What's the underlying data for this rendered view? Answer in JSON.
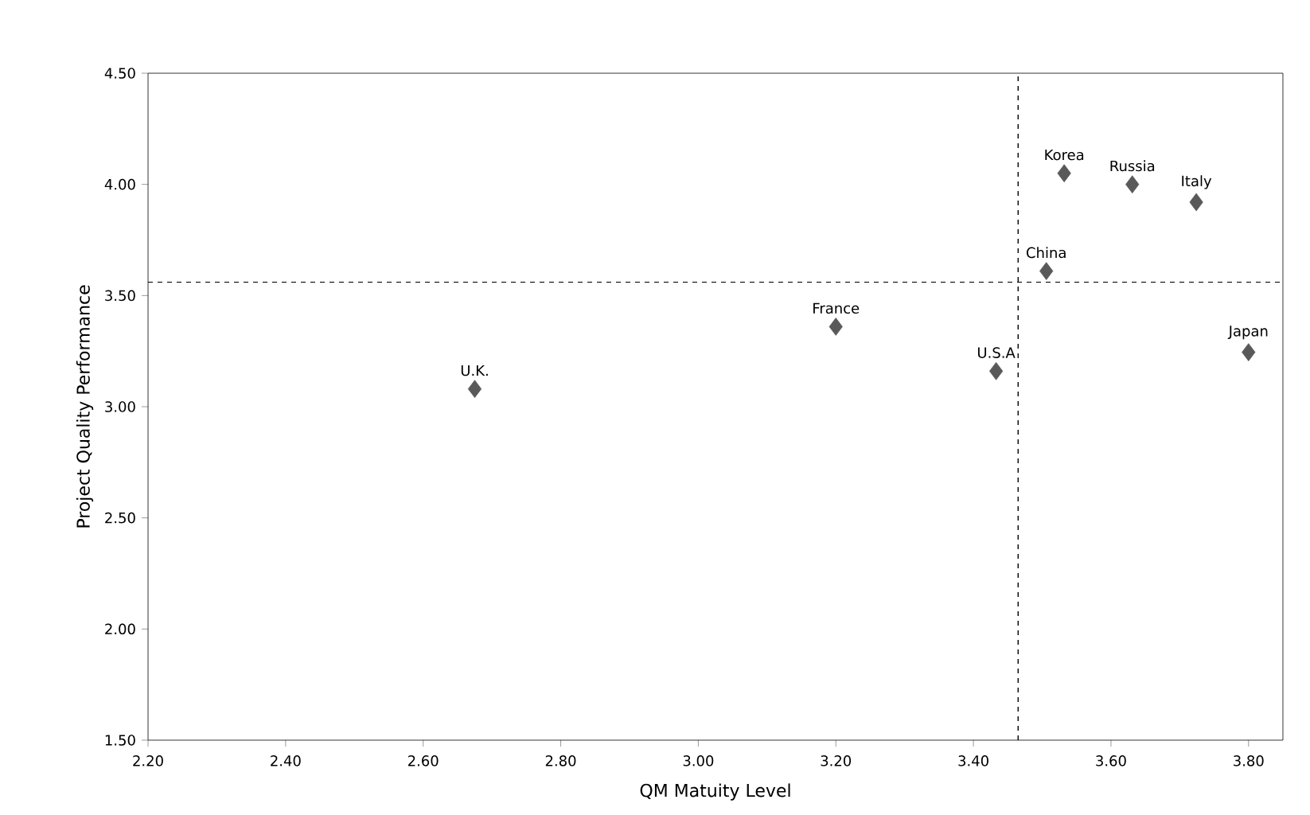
{
  "chart_data": {
    "type": "scatter",
    "xlabel": "QM Matuity Level",
    "ylabel": "Project Quality Performance",
    "x": [
      2.675,
      3.2,
      3.433,
      3.506,
      3.532,
      3.631,
      3.724,
      3.8
    ],
    "values": [
      3.08,
      3.36,
      3.16,
      3.61,
      4.05,
      4.0,
      3.92,
      3.245
    ],
    "color": "#595959",
    "marker": "diamond",
    "grid": false,
    "xlim": [
      2.2,
      3.85
    ],
    "xticks": [
      {
        "value": 2.2,
        "label": "2.20"
      },
      {
        "value": 2.4,
        "label": "2.40"
      },
      {
        "value": 2.6,
        "label": "2.60"
      },
      {
        "value": 2.8,
        "label": "2.80"
      },
      {
        "value": 3.0,
        "label": "3.00"
      },
      {
        "value": 3.2,
        "label": "3.20"
      },
      {
        "value": 3.4,
        "label": "3.40"
      },
      {
        "value": 3.6,
        "label": "3.60"
      },
      {
        "value": 3.8,
        "label": "3.80"
      }
    ],
    "ylim": [
      1.5,
      4.5
    ],
    "yticks": [
      {
        "value": 1.5,
        "label": "1.50"
      },
      {
        "value": 2.0,
        "label": "2.00"
      },
      {
        "value": 2.5,
        "label": "2.50"
      },
      {
        "value": 3.0,
        "label": "3.00"
      },
      {
        "value": 3.5,
        "label": "3.50"
      },
      {
        "value": 4.0,
        "label": "4.00"
      },
      {
        "value": 4.5,
        "label": "4.50"
      }
    ],
    "ref_lines": [
      {
        "axis": "x",
        "value": 3.465,
        "line_style": "dashed",
        "color": "#000000"
      },
      {
        "axis": "y",
        "value": 3.56,
        "line_style": "dashed",
        "color": "#000000"
      }
    ],
    "annotations": [
      {
        "text": "U.K.",
        "x": 2.675,
        "y": 3.08
      },
      {
        "text": "France",
        "x": 3.2,
        "y": 3.36
      },
      {
        "text": "U.S.A",
        "x": 3.433,
        "y": 3.16
      },
      {
        "text": "China",
        "x": 3.506,
        "y": 3.61
      },
      {
        "text": "Korea",
        "x": 3.532,
        "y": 4.05
      },
      {
        "text": "Russia",
        "x": 3.631,
        "y": 4.0
      },
      {
        "text": "Italy",
        "x": 3.724,
        "y": 3.92
      },
      {
        "text": "Japan",
        "x": 3.8,
        "y": 3.245
      }
    ]
  }
}
